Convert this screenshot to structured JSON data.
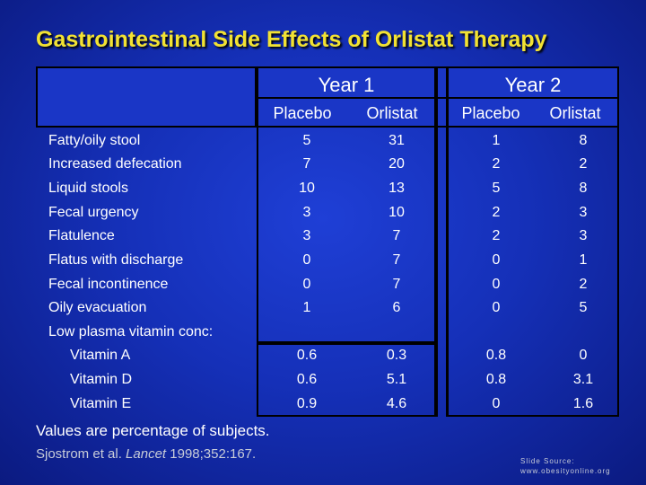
{
  "title": "Gastrointestinal Side Effects of Orlistat Therapy",
  "years": [
    "Year 1",
    "Year 2"
  ],
  "columns": [
    "Placebo",
    "Orlistat",
    "Placebo",
    "Orlistat"
  ],
  "rows": [
    {
      "label": "Fatty/oily stool",
      "values": [
        "5",
        "31",
        "1",
        "8"
      ]
    },
    {
      "label": "Increased defecation",
      "values": [
        "7",
        "20",
        "2",
        "2"
      ]
    },
    {
      "label": "Liquid stools",
      "values": [
        "10",
        "13",
        "5",
        "8"
      ]
    },
    {
      "label": "Fecal urgency",
      "values": [
        "3",
        "10",
        "2",
        "3"
      ]
    },
    {
      "label": "Flatulence",
      "values": [
        "3",
        "7",
        "2",
        "3"
      ]
    },
    {
      "label": "Flatus with discharge",
      "values": [
        "0",
        "7",
        "0",
        "1"
      ]
    },
    {
      "label": "Fecal incontinence",
      "values": [
        "0",
        "7",
        "0",
        "2"
      ]
    },
    {
      "label": "Oily evacuation",
      "values": [
        "1",
        "6",
        "0",
        "5"
      ]
    },
    {
      "label": "Low plasma vitamin conc:",
      "values": [
        "",
        "",
        "",
        ""
      ]
    },
    {
      "label": "Vitamin A",
      "values": [
        "0.6",
        "0.3",
        "0.8",
        "0"
      ]
    },
    {
      "label": "Vitamin D",
      "values": [
        "0.6",
        "5.1",
        "0.8",
        "3.1"
      ]
    },
    {
      "label": "Vitamin E",
      "values": [
        "0.9",
        "4.6",
        "0",
        "1.6"
      ]
    }
  ],
  "note": "Values are percentage of subjects.",
  "citation": {
    "authors": "Sjostrom et al.",
    "journal": "Lancet",
    "details": "1998;352:167."
  },
  "source": {
    "line1": "Slide Source:",
    "line2": "www.obesityonline.org"
  }
}
